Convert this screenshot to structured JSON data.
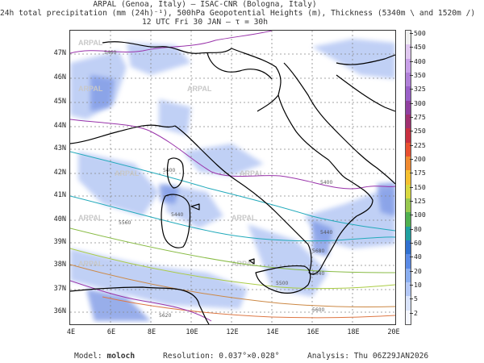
{
  "header": {
    "line1": "ARPAL (Genoa, Italy)  –  ISAC-CNR (Bologna, Italy)",
    "line2": "24h total precipitation (mm (24h)⁻¹), 500hPa Geopotential Heights (m), Thickness (5340m \\ and 1520m /)",
    "line3": "12 UTC Fri 30 JAN  –  τ = 30h"
  },
  "map": {
    "watermark": "ARPAL",
    "lat_labels": [
      "47N",
      "46N",
      "45N",
      "44N",
      "43N",
      "42N",
      "41N",
      "40N",
      "39N",
      "38N",
      "37N",
      "36N"
    ],
    "lon_labels": [
      "4E",
      "6E",
      "8E",
      "10E",
      "12E",
      "14E",
      "16E",
      "18E",
      "20E"
    ],
    "contour_labels": [
      "5460",
      "5400",
      "5400",
      "5440",
      "5440",
      "5500",
      "5540",
      "5560",
      "5600",
      "5620",
      "5680"
    ],
    "colors": {
      "geopotential": "#22aabb",
      "thickness": "#9933aa",
      "coast": "#000000",
      "grid": "#888888"
    }
  },
  "colorbar": {
    "labels": [
      "500",
      "450",
      "400",
      "350",
      "325",
      "300",
      "275",
      "250",
      "225",
      "200",
      "175",
      "150",
      "125",
      "100",
      "80",
      "60",
      "40",
      "20",
      "10",
      "5",
      "2"
    ],
    "colors": [
      "#efefef",
      "#e0c8f0",
      "#c8a0e8",
      "#b080d8",
      "#9a60c8",
      "#9040a0",
      "#a03070",
      "#c83040",
      "#e85030",
      "#f08a30",
      "#f5c030",
      "#d8d840",
      "#98c850",
      "#50b050",
      "#20a0a0",
      "#3070d0",
      "#5a8ae6",
      "#8aaef0",
      "#b4c8f6",
      "#dae4fb",
      "#f4f6fe"
    ]
  },
  "footer": {
    "model_prefix": "Model:",
    "model_name": "moloch",
    "resolution": "Resolution: 0.037°×0.028°",
    "analysis": "Analysis: Thu 06Z29JAN2026"
  }
}
